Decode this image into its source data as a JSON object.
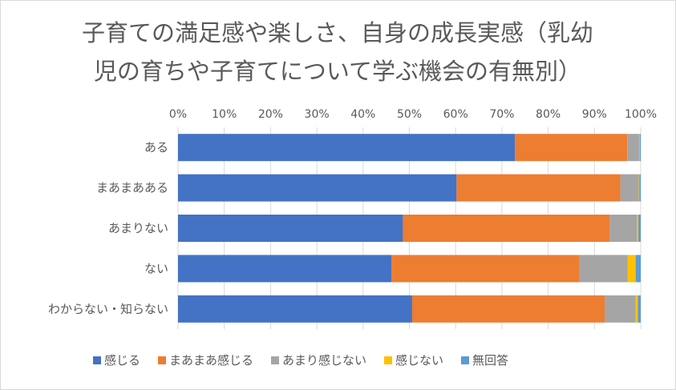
{
  "chart_data": {
    "type": "bar",
    "orientation": "horizontal",
    "stacked": true,
    "percent_stacked": true,
    "title_lines": [
      "子育ての満足感や楽しさ、自身の成長実感（乳幼",
      "児の育ちや子育てについて学ぶ機会の有無別）"
    ],
    "categories": [
      "ある",
      "まあまあある",
      "あまりない",
      "ない",
      "わからない・知らない"
    ],
    "series": [
      {
        "name": "感じる",
        "color": "#4472C4",
        "values": [
          72.8,
          60.2,
          48.6,
          46.1,
          50.6
        ]
      },
      {
        "name": "まあまあ感じる",
        "color": "#ED7D31",
        "values": [
          24.3,
          35.4,
          44.7,
          40.7,
          41.6
        ]
      },
      {
        "name": "あまり感じない",
        "color": "#A5A5A5",
        "values": [
          2.6,
          4.0,
          5.9,
          10.4,
          6.7
        ]
      },
      {
        "name": "感じない",
        "color": "#FFC000",
        "values": [
          0.1,
          0.1,
          0.3,
          1.7,
          0.5
        ]
      },
      {
        "name": "無回答",
        "color": "#5B9BD5",
        "values": [
          0.2,
          0.3,
          0.5,
          1.1,
          0.6
        ]
      }
    ],
    "x_ticks": [
      "0%",
      "10%",
      "20%",
      "30%",
      "40%",
      "50%",
      "60%",
      "70%",
      "80%",
      "90%",
      "100%"
    ],
    "xlim": [
      0,
      100
    ],
    "grid": true,
    "legend_position": "bottom"
  }
}
